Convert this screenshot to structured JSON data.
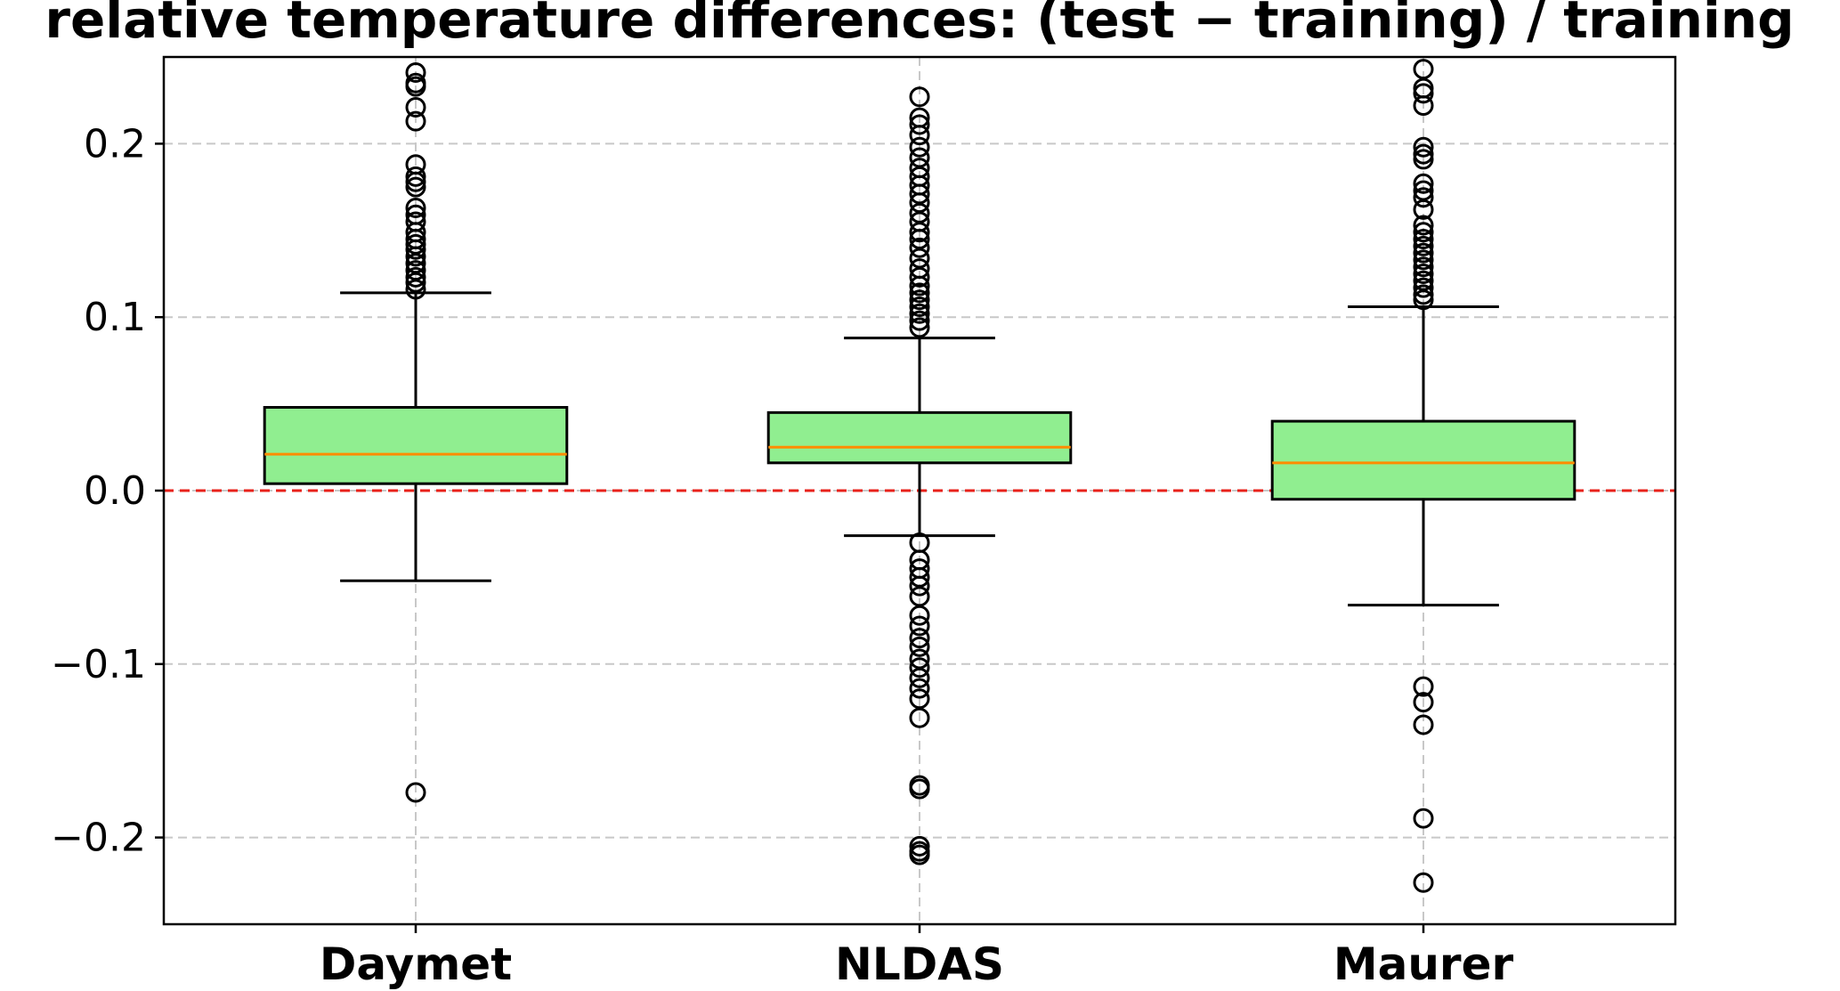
{
  "chart_data": {
    "type": "box",
    "title": "relative temperature differences: (test − training) / training",
    "xlabel": "",
    "ylabel": "",
    "ylim": [
      -0.25,
      0.25
    ],
    "yticks": [
      -0.2,
      -0.1,
      0.0,
      0.1,
      0.2
    ],
    "ytick_labels": [
      "−0.2",
      "−0.1",
      "0.0",
      "0.1",
      "0.2"
    ],
    "grid": true,
    "reference_line": {
      "y": 0.0,
      "color": "#e8211a",
      "style": "dashed"
    },
    "colors": {
      "box_fill": "#90ee90",
      "median": "#ff8c00",
      "outlier": "#000000",
      "grid": "#c8c8c8"
    },
    "categories": [
      "Daymet",
      "NLDAS",
      "Maurer"
    ],
    "boxes": [
      {
        "label": "Daymet",
        "whisker_low": -0.052,
        "q1": 0.004,
        "median": 0.021,
        "q3": 0.048,
        "whisker_high": 0.114,
        "outliers": [
          0.241,
          0.235,
          0.233,
          0.221,
          0.213,
          0.188,
          0.181,
          0.178,
          0.175,
          0.163,
          0.159,
          0.155,
          0.149,
          0.145,
          0.142,
          0.139,
          0.135,
          0.131,
          0.127,
          0.123,
          0.12,
          0.116,
          -0.174
        ]
      },
      {
        "label": "NLDAS",
        "whisker_low": -0.026,
        "q1": 0.016,
        "median": 0.025,
        "q3": 0.045,
        "whisker_high": 0.088,
        "outliers": [
          0.227,
          0.215,
          0.211,
          0.205,
          0.198,
          0.192,
          0.186,
          0.181,
          0.176,
          0.171,
          0.166,
          0.16,
          0.155,
          0.149,
          0.145,
          0.14,
          0.134,
          0.128,
          0.123,
          0.118,
          0.114,
          0.11,
          0.106,
          0.102,
          0.098,
          0.094,
          -0.03,
          -0.04,
          -0.045,
          -0.05,
          -0.055,
          -0.061,
          -0.072,
          -0.078,
          -0.085,
          -0.09,
          -0.097,
          -0.102,
          -0.108,
          -0.114,
          -0.12,
          -0.131,
          -0.17,
          -0.172,
          -0.205,
          -0.208,
          -0.21
        ]
      },
      {
        "label": "Maurer",
        "whisker_low": -0.066,
        "q1": -0.005,
        "median": 0.016,
        "q3": 0.04,
        "whisker_high": 0.106,
        "outliers": [
          0.243,
          0.232,
          0.229,
          0.222,
          0.198,
          0.194,
          0.191,
          0.177,
          0.173,
          0.169,
          0.162,
          0.153,
          0.149,
          0.145,
          0.141,
          0.137,
          0.133,
          0.129,
          0.125,
          0.121,
          0.117,
          0.113,
          0.11,
          -0.113,
          -0.122,
          -0.135,
          -0.189,
          -0.226
        ]
      }
    ]
  }
}
